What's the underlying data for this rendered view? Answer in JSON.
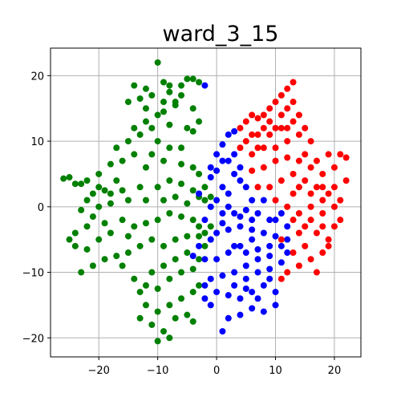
{
  "chart_data": {
    "type": "scatter",
    "title": "ward_3_15",
    "xlabel": "",
    "ylabel": "",
    "xlim": [
      -28.2,
      24.5
    ],
    "ylim": [
      -22.9,
      24.2
    ],
    "x_ticks": [
      -20,
      -10,
      0,
      10,
      20
    ],
    "y_ticks": [
      -20,
      -10,
      0,
      10,
      20
    ],
    "x_tick_labels": [
      "−20",
      "−10",
      "0",
      "10",
      "20"
    ],
    "y_tick_labels": [
      "−20",
      "−10",
      "0",
      "10",
      "20"
    ],
    "grid": true,
    "series": [
      {
        "color": "#008000",
        "points": [
          [
            -10,
            22
          ],
          [
            -14,
            18.5
          ],
          [
            -12,
            18
          ],
          [
            -8,
            17.5
          ],
          [
            -11,
            17
          ],
          [
            -13,
            16.5
          ],
          [
            -9,
            16
          ],
          [
            -5,
            19.5
          ],
          [
            -4,
            19.5
          ],
          [
            -3,
            19
          ],
          [
            -6,
            18.5
          ],
          [
            -7,
            15.5
          ],
          [
            -10,
            14
          ],
          [
            -12,
            13
          ],
          [
            -14,
            12
          ],
          [
            -8,
            12.5
          ],
          [
            -5,
            12
          ],
          [
            -4,
            11.5
          ],
          [
            -15,
            10
          ],
          [
            -10,
            10
          ],
          [
            -8,
            9
          ],
          [
            -6,
            9
          ],
          [
            -11,
            8
          ],
          [
            -14,
            8
          ],
          [
            -9,
            7
          ],
          [
            -12,
            6
          ],
          [
            -16,
            7
          ],
          [
            -18,
            6.5
          ],
          [
            -20,
            5
          ],
          [
            -22,
            4
          ],
          [
            -25,
            4.5
          ],
          [
            -24,
            3.5
          ],
          [
            -20,
            3
          ],
          [
            -18,
            2
          ],
          [
            -16,
            2.5
          ],
          [
            -13,
            3
          ],
          [
            -10,
            3
          ],
          [
            -8,
            4
          ],
          [
            -6,
            3.5
          ],
          [
            -4,
            2.5
          ],
          [
            -3,
            1.5
          ],
          [
            -2,
            1
          ],
          [
            -5,
            0.5
          ],
          [
            -7,
            1.5
          ],
          [
            -9,
            1
          ],
          [
            -12,
            1
          ],
          [
            -15,
            1
          ],
          [
            -18,
            0.5
          ],
          [
            -20,
            0
          ],
          [
            -22,
            1
          ],
          [
            -23,
            -0.5
          ],
          [
            -21,
            -1.5
          ],
          [
            -19,
            -2.5
          ],
          [
            -16,
            -2
          ],
          [
            -14,
            -3
          ],
          [
            -12,
            -2.5
          ],
          [
            -10,
            -2
          ],
          [
            -8,
            -1
          ],
          [
            -6,
            -1.5
          ],
          [
            -4,
            -2
          ],
          [
            -3,
            -3
          ],
          [
            -2,
            -4
          ],
          [
            -1,
            -5
          ],
          [
            -5,
            -4.5
          ],
          [
            -7,
            -5
          ],
          [
            -9,
            -6
          ],
          [
            -11,
            -5
          ],
          [
            -13,
            -6
          ],
          [
            -15,
            -7
          ],
          [
            -17,
            -7.5
          ],
          [
            -19,
            -8
          ],
          [
            -21,
            -9
          ],
          [
            -23,
            -10
          ],
          [
            -24,
            -6
          ],
          [
            -25,
            -5
          ],
          [
            -22,
            -6.5
          ],
          [
            -20,
            -5
          ],
          [
            -16,
            -9
          ],
          [
            -14,
            -11
          ],
          [
            -12,
            -12
          ],
          [
            -10,
            -12.5
          ],
          [
            -8,
            -11
          ],
          [
            -6,
            -10
          ],
          [
            -4,
            -9.5
          ],
          [
            -3,
            -8
          ],
          [
            -5,
            -7
          ],
          [
            -7,
            -8
          ],
          [
            -9,
            -9
          ],
          [
            -11,
            -10
          ],
          [
            -13,
            -13
          ],
          [
            -12,
            -15
          ],
          [
            -10,
            -16
          ],
          [
            -8,
            -15
          ],
          [
            -6,
            -14
          ],
          [
            -4,
            -13
          ],
          [
            -3,
            -12
          ],
          [
            -13,
            -17
          ],
          [
            -11,
            -18
          ],
          [
            -9,
            -19
          ],
          [
            -10,
            -20.5
          ],
          [
            -8,
            -20
          ],
          [
            -7,
            -17
          ],
          [
            -5,
            -16.5
          ],
          [
            -4,
            -17.5
          ],
          [
            -2,
            -6
          ],
          [
            -1,
            -3
          ],
          [
            -3,
            -4.5
          ],
          [
            -1,
            1.5
          ],
          [
            -2,
            3
          ],
          [
            -3,
            5
          ],
          [
            -4,
            6
          ],
          [
            -6,
            6.5
          ],
          [
            -17,
            4
          ],
          [
            -19,
            2.5
          ],
          [
            -21,
            2
          ],
          [
            -23,
            3.5
          ],
          [
            -26,
            4.3
          ],
          [
            -22,
            -3
          ],
          [
            -24,
            -4
          ],
          [
            -18,
            -4
          ],
          [
            -15,
            -4.5
          ],
          [
            -17,
            9
          ],
          [
            -13,
            11
          ],
          [
            -11,
            12
          ],
          [
            -9,
            14.5
          ],
          [
            -7,
            16
          ],
          [
            -12,
            15
          ],
          [
            -15,
            16
          ],
          [
            -8,
            18.5
          ],
          [
            -9,
            19
          ],
          [
            -6,
            17
          ],
          [
            -4,
            15
          ],
          [
            -3,
            13
          ]
        ]
      },
      {
        "color": "#0000ff",
        "points": [
          [
            -2,
            18.5
          ],
          [
            2,
            11
          ],
          [
            3,
            11.5
          ],
          [
            1,
            9.5
          ],
          [
            3,
            8
          ],
          [
            2,
            7
          ],
          [
            4,
            6
          ],
          [
            0,
            5.5
          ],
          [
            -1,
            4.5
          ],
          [
            1,
            3
          ],
          [
            2,
            2
          ],
          [
            0,
            1
          ],
          [
            -1,
            0
          ],
          [
            1,
            -1
          ],
          [
            3,
            -1
          ],
          [
            5,
            -0.5
          ],
          [
            7,
            -1
          ],
          [
            6,
            -2
          ],
          [
            4,
            -3
          ],
          [
            2,
            -3.5
          ],
          [
            0,
            -4
          ],
          [
            -1,
            -5
          ],
          [
            -3,
            -6
          ],
          [
            -4,
            -7.5
          ],
          [
            -2,
            -8
          ],
          [
            0,
            -8
          ],
          [
            2,
            -7
          ],
          [
            4,
            -6
          ],
          [
            6,
            -5
          ],
          [
            8,
            -4
          ],
          [
            10,
            -4.5
          ],
          [
            11,
            -6
          ],
          [
            12,
            -7
          ],
          [
            9,
            -7.5
          ],
          [
            7,
            -8
          ],
          [
            5,
            -9
          ],
          [
            3,
            -10
          ],
          [
            1,
            -10.5
          ],
          [
            -1,
            -11
          ],
          [
            -2,
            -12
          ],
          [
            0,
            -13
          ],
          [
            2,
            -13.5
          ],
          [
            4,
            -14
          ],
          [
            6,
            -13
          ],
          [
            8,
            -12
          ],
          [
            10,
            -13
          ],
          [
            10,
            -15
          ],
          [
            8,
            -16
          ],
          [
            6,
            -15.5
          ],
          [
            4,
            -16.5
          ],
          [
            2,
            -17
          ],
          [
            1,
            -19
          ],
          [
            -1,
            -15
          ],
          [
            -2,
            -14
          ],
          [
            5,
            -11
          ],
          [
            7,
            -10
          ],
          [
            9,
            -9.5
          ],
          [
            11,
            -8.5
          ],
          [
            12,
            -3
          ],
          [
            11,
            -1
          ],
          [
            9,
            -2
          ],
          [
            8,
            1
          ],
          [
            6,
            1
          ],
          [
            5,
            3
          ],
          [
            4,
            4
          ],
          [
            3,
            5
          ],
          [
            1,
            7
          ],
          [
            0,
            8
          ],
          [
            -1,
            6
          ],
          [
            -3,
            2
          ],
          [
            -2,
            -2
          ],
          [
            3,
            -6
          ],
          [
            5,
            -7
          ],
          [
            7,
            -6.5
          ],
          [
            9,
            -6
          ],
          [
            3,
            -12
          ],
          [
            5,
            -12.5
          ],
          [
            7,
            -14
          ],
          [
            9,
            -11
          ],
          [
            12,
            -5
          ],
          [
            10,
            -2
          ],
          [
            6,
            -3.5
          ],
          [
            4,
            -1.5
          ],
          [
            2,
            0
          ],
          [
            1,
            -2.5
          ]
        ]
      },
      {
        "color": "#ff0000",
        "points": [
          [
            13,
            19
          ],
          [
            12,
            18
          ],
          [
            11,
            17
          ],
          [
            10,
            16
          ],
          [
            9,
            15
          ],
          [
            8,
            14
          ],
          [
            7,
            13.5
          ],
          [
            6,
            14
          ],
          [
            5,
            13
          ],
          [
            4,
            12
          ],
          [
            12,
            15
          ],
          [
            14,
            14
          ],
          [
            13,
            13
          ],
          [
            11,
            12
          ],
          [
            9,
            11
          ],
          [
            7,
            11
          ],
          [
            5,
            10
          ],
          [
            4,
            9
          ],
          [
            6,
            8
          ],
          [
            8,
            9
          ],
          [
            10,
            9
          ],
          [
            12,
            10
          ],
          [
            14,
            11
          ],
          [
            16,
            10
          ],
          [
            15,
            8
          ],
          [
            17,
            7
          ],
          [
            19,
            8
          ],
          [
            21,
            8
          ],
          [
            22,
            7.5
          ],
          [
            20,
            6
          ],
          [
            18,
            5
          ],
          [
            16,
            6
          ],
          [
            14,
            7
          ],
          [
            12,
            7.5
          ],
          [
            10,
            7
          ],
          [
            8,
            6
          ],
          [
            6,
            5.5
          ],
          [
            7,
            3
          ],
          [
            9,
            3
          ],
          [
            11,
            4
          ],
          [
            13,
            5
          ],
          [
            15,
            4
          ],
          [
            17,
            3
          ],
          [
            19,
            2
          ],
          [
            21,
            1
          ],
          [
            20,
            3
          ],
          [
            22,
            4
          ],
          [
            18,
            1
          ],
          [
            16,
            0
          ],
          [
            14,
            -1
          ],
          [
            12,
            0
          ],
          [
            10,
            1
          ],
          [
            13,
            -2
          ],
          [
            15,
            -3
          ],
          [
            17,
            -4
          ],
          [
            19,
            -5
          ],
          [
            20,
            -3
          ],
          [
            18,
            -7
          ],
          [
            16,
            -8
          ],
          [
            14,
            -9
          ],
          [
            12,
            -10
          ],
          [
            11,
            -11
          ],
          [
            17,
            -10
          ],
          [
            19,
            -6
          ],
          [
            21,
            -2
          ],
          [
            18,
            -1
          ],
          [
            15,
            -6
          ],
          [
            13,
            -7
          ],
          [
            11,
            -5
          ],
          [
            13,
            2
          ],
          [
            16,
            2
          ],
          [
            18,
            3
          ],
          [
            20,
            0
          ],
          [
            14,
            3
          ],
          [
            10,
            12
          ],
          [
            8,
            12
          ],
          [
            6,
            11
          ],
          [
            11,
            14
          ],
          [
            13,
            16
          ],
          [
            9,
            13
          ],
          [
            7,
            9
          ],
          [
            15,
            12
          ],
          [
            12,
            12
          ],
          [
            16,
            -2
          ],
          [
            18,
            -3
          ],
          [
            14,
            -4
          ]
        ]
      }
    ]
  }
}
